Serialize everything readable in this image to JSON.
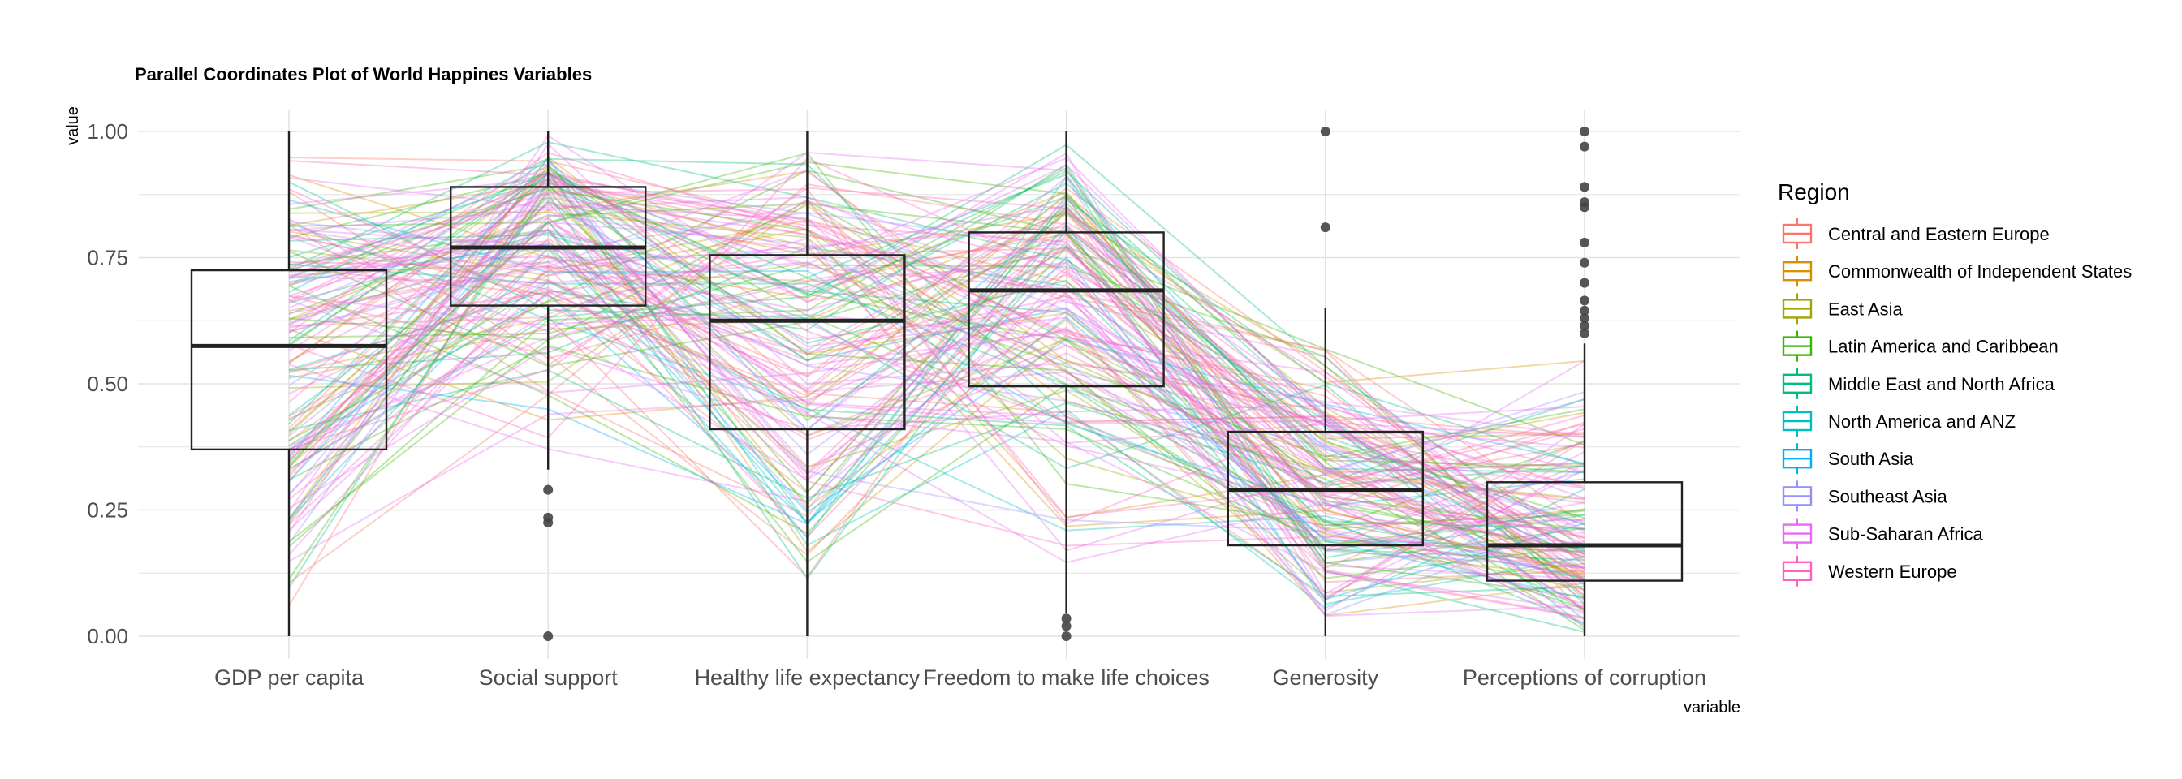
{
  "chart_data": {
    "type": "parallel_coordinates_with_boxplots",
    "title": "Parallel Coordinates Plot of World Happines Variables",
    "xlabel": "variable",
    "ylabel": "value",
    "ylim": [
      0,
      1
    ],
    "yticks": [
      "0.00",
      "0.25",
      "0.50",
      "0.75",
      "1.00"
    ],
    "grid": true,
    "categories": [
      "GDP per capita",
      "Social support",
      "Healthy life expectancy",
      "Freedom to make life choices",
      "Generosity",
      "Perceptions of corruption"
    ],
    "boxplots": [
      {
        "variable": "GDP per capita",
        "min": 0.0,
        "q1": 0.37,
        "median": 0.575,
        "q3": 0.725,
        "max": 1.0,
        "outliers": []
      },
      {
        "variable": "Social support",
        "min": 0.33,
        "q1": 0.655,
        "median": 0.77,
        "q3": 0.89,
        "max": 1.0,
        "outliers": [
          0.29,
          0.235,
          0.225,
          0.0
        ]
      },
      {
        "variable": "Healthy life expectancy",
        "min": 0.0,
        "q1": 0.41,
        "median": 0.625,
        "q3": 0.755,
        "max": 1.0,
        "outliers": []
      },
      {
        "variable": "Freedom to make life choices",
        "min": 0.045,
        "q1": 0.495,
        "median": 0.685,
        "q3": 0.8,
        "max": 1.0,
        "outliers": [
          0.035,
          0.02,
          0.0
        ]
      },
      {
        "variable": "Generosity",
        "min": 0.0,
        "q1": 0.18,
        "median": 0.29,
        "q3": 0.405,
        "max": 0.65,
        "outliers": [
          1.0,
          0.81
        ]
      },
      {
        "variable": "Perceptions of corruption",
        "min": 0.0,
        "q1": 0.11,
        "median": 0.18,
        "q3": 0.305,
        "max": 0.58,
        "outliers": [
          1.0,
          0.97,
          0.89,
          0.86,
          0.85,
          0.78,
          0.74,
          0.7,
          0.665,
          0.645,
          0.63,
          0.615,
          0.6
        ]
      }
    ],
    "legend": {
      "title": "Region",
      "position": "right",
      "entries": [
        {
          "name": "Central and Eastern Europe",
          "color": "#F8766D"
        },
        {
          "name": "Commonwealth of Independent States",
          "color": "#D89000"
        },
        {
          "name": "East Asia",
          "color": "#A3A500"
        },
        {
          "name": "Latin America and Caribbean",
          "color": "#39B600"
        },
        {
          "name": "Middle East and North Africa",
          "color": "#00BF7D"
        },
        {
          "name": "North America and ANZ",
          "color": "#00BFC4"
        },
        {
          "name": "South Asia",
          "color": "#00B0F6"
        },
        {
          "name": "Southeast Asia",
          "color": "#9590FF"
        },
        {
          "name": "Sub-Saharan Africa",
          "color": "#E76BF3"
        },
        {
          "name": "Western Europe",
          "color": "#FF62BC"
        }
      ]
    },
    "line_alpha": 0.35
  }
}
